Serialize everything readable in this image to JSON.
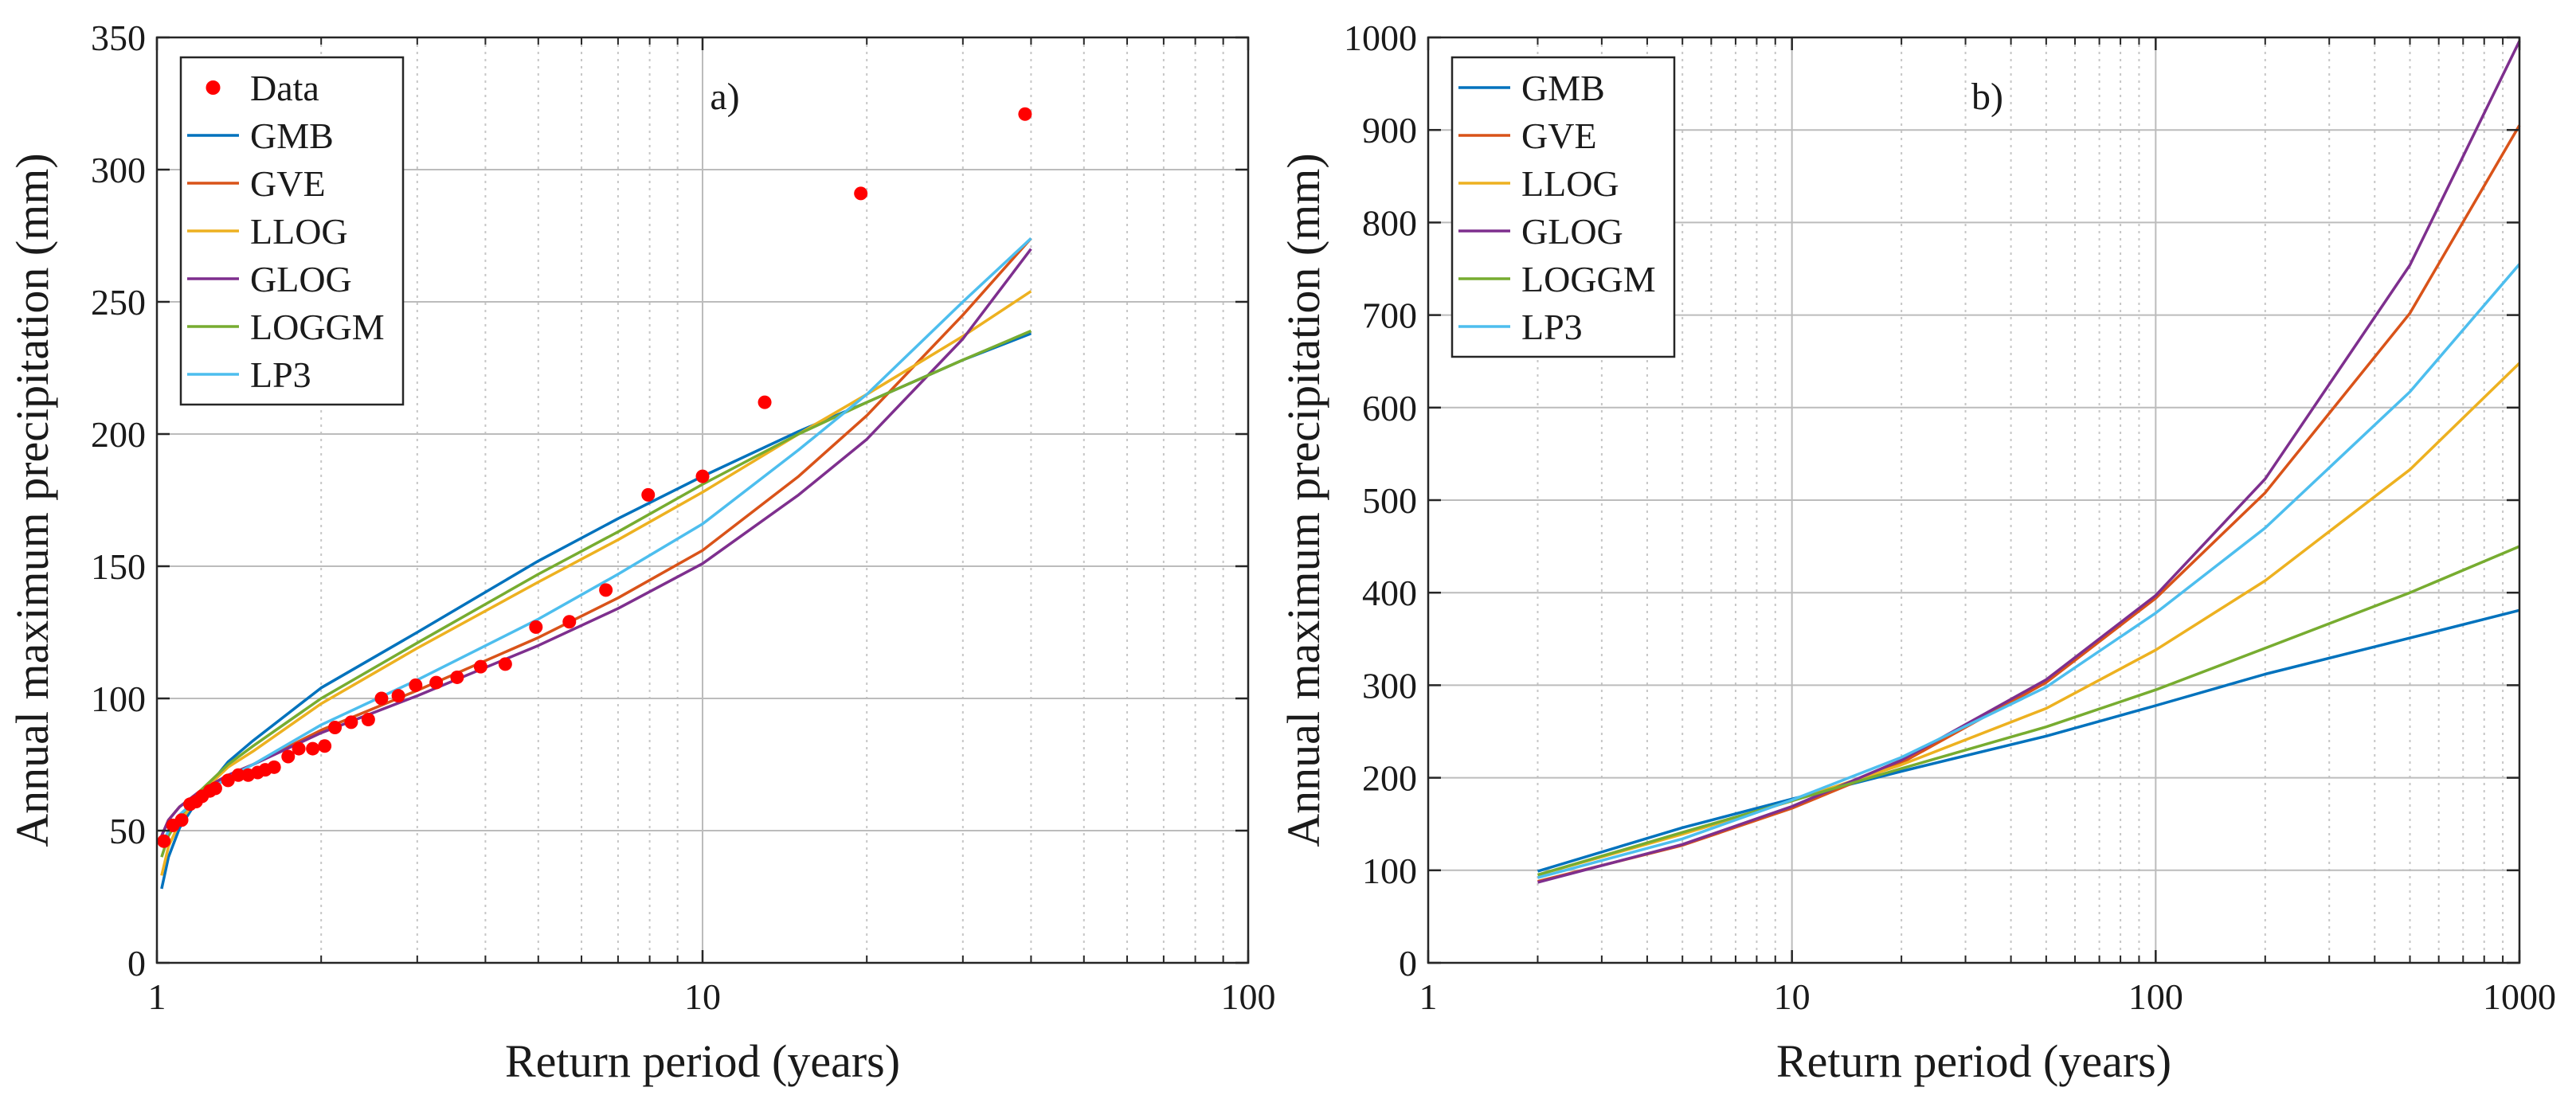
{
  "chart_data": [
    {
      "panel": "a)",
      "type": "line",
      "xscale": "log",
      "xlabel": "Return period (years)",
      "ylabel": "Annual maximum precipitation (mm)",
      "xlim": [
        1,
        100
      ],
      "ylim": [
        0,
        350
      ],
      "xticks": [
        1,
        10,
        100
      ],
      "xticklabels": [
        "1",
        "10",
        "100"
      ],
      "yticks": [
        0,
        50,
        100,
        150,
        200,
        250,
        300,
        350
      ],
      "yticklabels": [
        "0",
        "50",
        "100",
        "150",
        "200",
        "250",
        "300",
        "350"
      ],
      "grid": true,
      "legend_position": "top-left",
      "scatter": {
        "name": "Data",
        "color": "#ff0000",
        "points": [
          [
            1.03,
            46
          ],
          [
            1.07,
            52
          ],
          [
            1.11,
            54
          ],
          [
            1.15,
            60
          ],
          [
            1.18,
            61
          ],
          [
            1.21,
            63
          ],
          [
            1.25,
            65
          ],
          [
            1.28,
            66
          ],
          [
            1.35,
            69
          ],
          [
            1.41,
            71
          ],
          [
            1.47,
            71
          ],
          [
            1.53,
            72
          ],
          [
            1.58,
            73
          ],
          [
            1.64,
            74
          ],
          [
            1.74,
            78
          ],
          [
            1.82,
            81
          ],
          [
            1.93,
            81
          ],
          [
            2.03,
            82
          ],
          [
            2.12,
            89
          ],
          [
            2.27,
            91
          ],
          [
            2.44,
            92
          ],
          [
            2.58,
            100
          ],
          [
            2.77,
            101
          ],
          [
            2.98,
            105
          ],
          [
            3.25,
            106
          ],
          [
            3.55,
            108
          ],
          [
            3.92,
            112
          ],
          [
            4.35,
            113
          ],
          [
            4.95,
            127
          ],
          [
            5.7,
            129
          ],
          [
            6.65,
            141
          ],
          [
            7.95,
            177
          ],
          [
            10.0,
            184
          ],
          [
            13.0,
            212
          ],
          [
            19.5,
            291
          ],
          [
            39.0,
            321
          ]
        ]
      },
      "series": [
        {
          "name": "GMB",
          "color": "#0072bd",
          "x": [
            1.02,
            1.05,
            1.1,
            1.2,
            1.35,
            1.5,
            2,
            3,
            5,
            7,
            10,
            15,
            20,
            30,
            40
          ],
          "y": [
            28,
            40,
            51,
            63,
            76,
            84,
            104,
            125,
            152,
            168,
            184,
            201,
            212,
            228,
            238
          ]
        },
        {
          "name": "GVE",
          "color": "#d95319",
          "x": [
            1.02,
            1.05,
            1.1,
            1.2,
            1.35,
            1.5,
            2,
            3,
            5,
            7,
            10,
            15,
            20,
            30,
            40
          ],
          "y": [
            48,
            54,
            59,
            65,
            71,
            75,
            88,
            103,
            123,
            138,
            156,
            184,
            207,
            245,
            274
          ]
        },
        {
          "name": "LLOG",
          "color": "#edb120",
          "x": [
            1.02,
            1.05,
            1.1,
            1.2,
            1.35,
            1.5,
            2,
            3,
            5,
            7,
            10,
            15,
            20,
            30,
            40
          ],
          "y": [
            33,
            44,
            53,
            64,
            74,
            80,
            98,
            119,
            144,
            160,
            178,
            200,
            215,
            237,
            254
          ]
        },
        {
          "name": "GLOG",
          "color": "#7e2f8e",
          "x": [
            1.02,
            1.05,
            1.1,
            1.2,
            1.35,
            1.5,
            2,
            3,
            5,
            7,
            10,
            15,
            20,
            30,
            40
          ],
          "y": [
            48,
            54,
            59,
            65,
            71,
            75,
            87,
            101,
            120,
            134,
            151,
            177,
            198,
            236,
            270
          ]
        },
        {
          "name": "LOGGM",
          "color": "#77ac30",
          "x": [
            1.02,
            1.05,
            1.1,
            1.2,
            1.35,
            1.5,
            2,
            3,
            5,
            7,
            10,
            15,
            20,
            30,
            40
          ],
          "y": [
            40,
            48,
            55,
            65,
            75,
            82,
            100,
            121,
            147,
            163,
            181,
            200,
            212,
            228,
            239
          ]
        },
        {
          "name": "LP3",
          "color": "#4dbeee",
          "x": [
            1.02,
            1.05,
            1.1,
            1.2,
            1.35,
            1.5,
            2,
            3,
            5,
            7,
            10,
            15,
            20,
            30,
            40
          ],
          "y": [
            44,
            50,
            56,
            63,
            70,
            75,
            90,
            107,
            130,
            147,
            166,
            194,
            215,
            250,
            274
          ]
        }
      ],
      "annotation": "a)"
    },
    {
      "panel": "b)",
      "type": "line",
      "xscale": "log",
      "xlabel": "Return period (years)",
      "ylabel": "Annual maximum precipitation (mm)",
      "xlim": [
        1,
        1000
      ],
      "ylim": [
        0,
        1000
      ],
      "xticks": [
        1,
        10,
        100,
        1000
      ],
      "xticklabels": [
        "1",
        "10",
        "100",
        "1000"
      ],
      "yticks": [
        0,
        100,
        200,
        300,
        400,
        500,
        600,
        700,
        800,
        900,
        1000
      ],
      "yticklabels": [
        "0",
        "100",
        "200",
        "300",
        "400",
        "500",
        "600",
        "700",
        "800",
        "900",
        "1000"
      ],
      "grid": true,
      "legend_position": "top-left",
      "series": [
        {
          "name": "GMB",
          "color": "#0072bd",
          "x": [
            2,
            5,
            10,
            20,
            50,
            100,
            200,
            500,
            1000
          ],
          "y": [
            99,
            146,
            177,
            207,
            245,
            278,
            312,
            351,
            381
          ]
        },
        {
          "name": "GVE",
          "color": "#d95319",
          "x": [
            2,
            5,
            10,
            20,
            50,
            100,
            200,
            500,
            1000
          ],
          "y": [
            88,
            127,
            167,
            216,
            303,
            394,
            508,
            702,
            905
          ]
        },
        {
          "name": "LLOG",
          "color": "#edb120",
          "x": [
            2,
            5,
            10,
            20,
            50,
            100,
            200,
            500,
            1000
          ],
          "y": [
            95,
            139,
            175,
            214,
            275,
            338,
            413,
            533,
            648
          ]
        },
        {
          "name": "GLOG",
          "color": "#7e2f8e",
          "x": [
            2,
            5,
            10,
            20,
            50,
            100,
            200,
            500,
            1000
          ],
          "y": [
            87,
            128,
            169,
            219,
            306,
            397,
            523,
            754,
            996
          ]
        },
        {
          "name": "LOGGM",
          "color": "#77ac30",
          "x": [
            2,
            5,
            10,
            20,
            50,
            100,
            200,
            500,
            1000
          ],
          "y": [
            95,
            141,
            175,
            210,
            255,
            295,
            340,
            400,
            450
          ]
        },
        {
          "name": "LP3",
          "color": "#4dbeee",
          "x": [
            2,
            5,
            10,
            20,
            50,
            100,
            200,
            500,
            1000
          ],
          "y": [
            92,
            134,
            176,
            222,
            298,
            378,
            470,
            617,
            755
          ]
        }
      ],
      "annotation": "b)"
    }
  ]
}
